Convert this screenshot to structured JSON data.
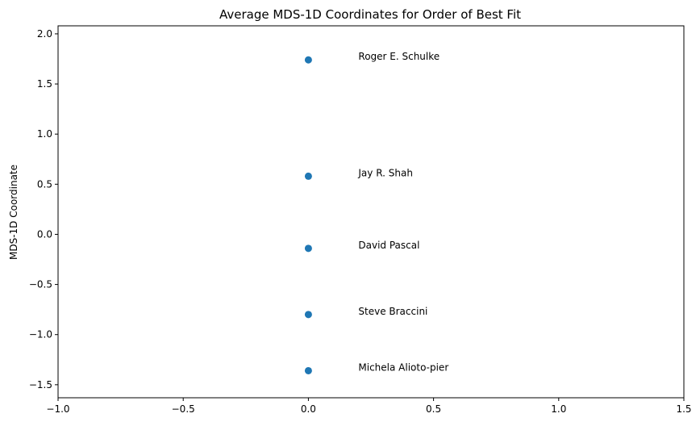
{
  "chart_data": {
    "type": "scatter",
    "title": "Average MDS-1D Coordinates for Order of Best Fit",
    "xlabel": "",
    "ylabel": "MDS-1D Coordinate",
    "xlim": [
      -1.0,
      1.5
    ],
    "ylim": [
      -1.63,
      2.08
    ],
    "xticks": [
      "−1.0",
      "−0.5",
      "0.0",
      "0.5",
      "1.0",
      "1.5"
    ],
    "xtick_values": [
      -1.0,
      -0.5,
      0.0,
      0.5,
      1.0,
      1.5
    ],
    "yticks": [
      "−1.5",
      "−1.0",
      "−0.5",
      "0.0",
      "0.5",
      "1.0",
      "1.5",
      "2.0"
    ],
    "ytick_values": [
      -1.5,
      -1.0,
      -0.5,
      0.0,
      0.5,
      1.0,
      1.5,
      2.0
    ],
    "grid": false,
    "marker_color": "#1f77b4",
    "points": [
      {
        "label": "Roger E. Schulke",
        "x": 0.0,
        "y": 1.74
      },
      {
        "label": "Jay R. Shah",
        "x": 0.0,
        "y": 0.58
      },
      {
        "label": "David Pascal",
        "x": 0.0,
        "y": -0.14
      },
      {
        "label": "Steve Braccini",
        "x": 0.0,
        "y": -0.8
      },
      {
        "label": "Michela Alioto-pier",
        "x": 0.0,
        "y": -1.36
      }
    ]
  }
}
